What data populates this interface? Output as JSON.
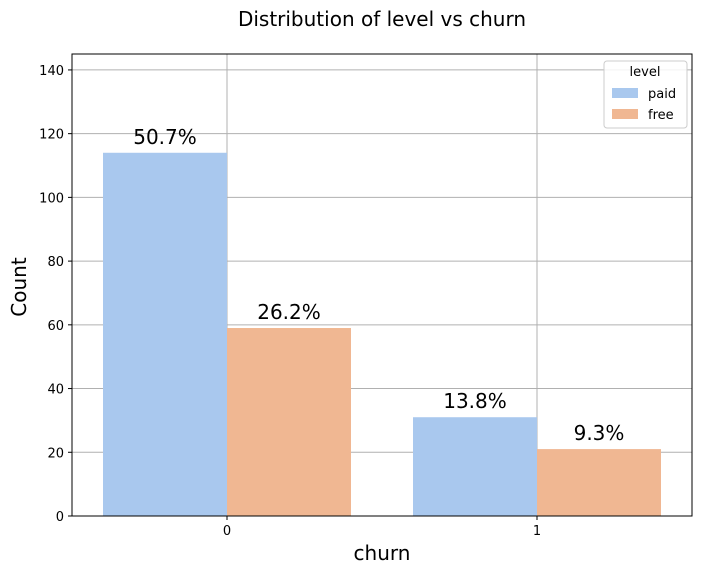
{
  "chart_data": {
    "type": "bar",
    "title": "Distribution of level vs churn",
    "xlabel": "churn",
    "ylabel": "Count",
    "categories": [
      "0",
      "1"
    ],
    "series": [
      {
        "name": "paid",
        "values": [
          114,
          31
        ],
        "labels": [
          "50.7%",
          "13.8%"
        ],
        "color": "#a9c8ee"
      },
      {
        "name": "free",
        "values": [
          59,
          21
        ],
        "labels": [
          "26.2%",
          "9.3%"
        ],
        "color": "#f0b792"
      }
    ],
    "ylim": [
      0,
      145
    ],
    "yticks": [
      0,
      20,
      40,
      60,
      80,
      100,
      120,
      140
    ],
    "grid": true,
    "legend": {
      "title": "level",
      "position": "top-right"
    }
  }
}
